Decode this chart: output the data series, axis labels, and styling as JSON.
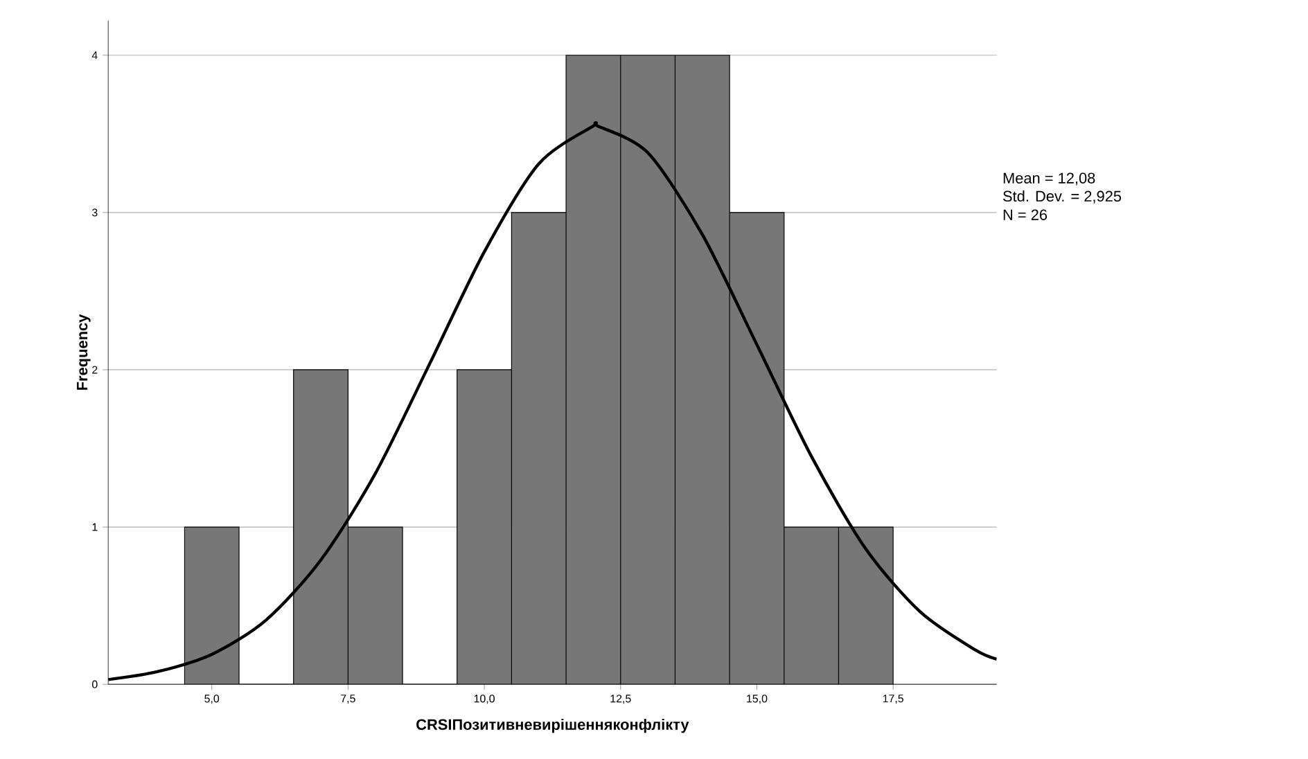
{
  "chart_data": {
    "type": "histogram",
    "xlabel": "CRSIПозитивневирішенняконфлікту",
    "ylabel": "Frequency",
    "bins": [
      4.5,
      5.5,
      6.5,
      7.5,
      8.5,
      9.5,
      10.5,
      11.5,
      12.5,
      13.5,
      14.5,
      15.5,
      16.5,
      17.5
    ],
    "values": [
      1,
      0,
      2,
      1,
      0,
      2,
      3,
      4,
      4,
      4,
      3,
      1,
      1
    ],
    "color": "#777777",
    "series": [
      {
        "type": "line",
        "color": "#000000",
        "x": [
          3.1,
          4,
          5,
          6,
          7,
          8,
          9,
          10,
          11,
          12,
          12.08,
          13,
          14,
          15,
          16,
          17,
          18,
          19,
          19.4
        ],
        "values": [
          0.03,
          0.08,
          0.19,
          0.41,
          0.79,
          1.34,
          2.04,
          2.75,
          3.31,
          3.55,
          3.55,
          3.38,
          2.86,
          2.16,
          1.45,
          0.86,
          0.46,
          0.22,
          0.16
        ]
      }
    ],
    "xlim": [
      3.1,
      19.4
    ],
    "ylim": [
      0,
      4.22
    ],
    "xticks": [
      {
        "value": 5,
        "label": "5,0"
      },
      {
        "value": 7.5,
        "label": "7,5"
      },
      {
        "value": 10,
        "label": "10,0"
      },
      {
        "value": 12.5,
        "label": "12,5"
      },
      {
        "value": 15,
        "label": "15,0"
      },
      {
        "value": 17.5,
        "label": "17,5"
      }
    ],
    "yticks": [
      0,
      1,
      2,
      3,
      4
    ],
    "grid": "y",
    "annotations": [
      "Mean = 12,08",
      "Std. Dev. = 2,925",
      "N = 26"
    ]
  }
}
